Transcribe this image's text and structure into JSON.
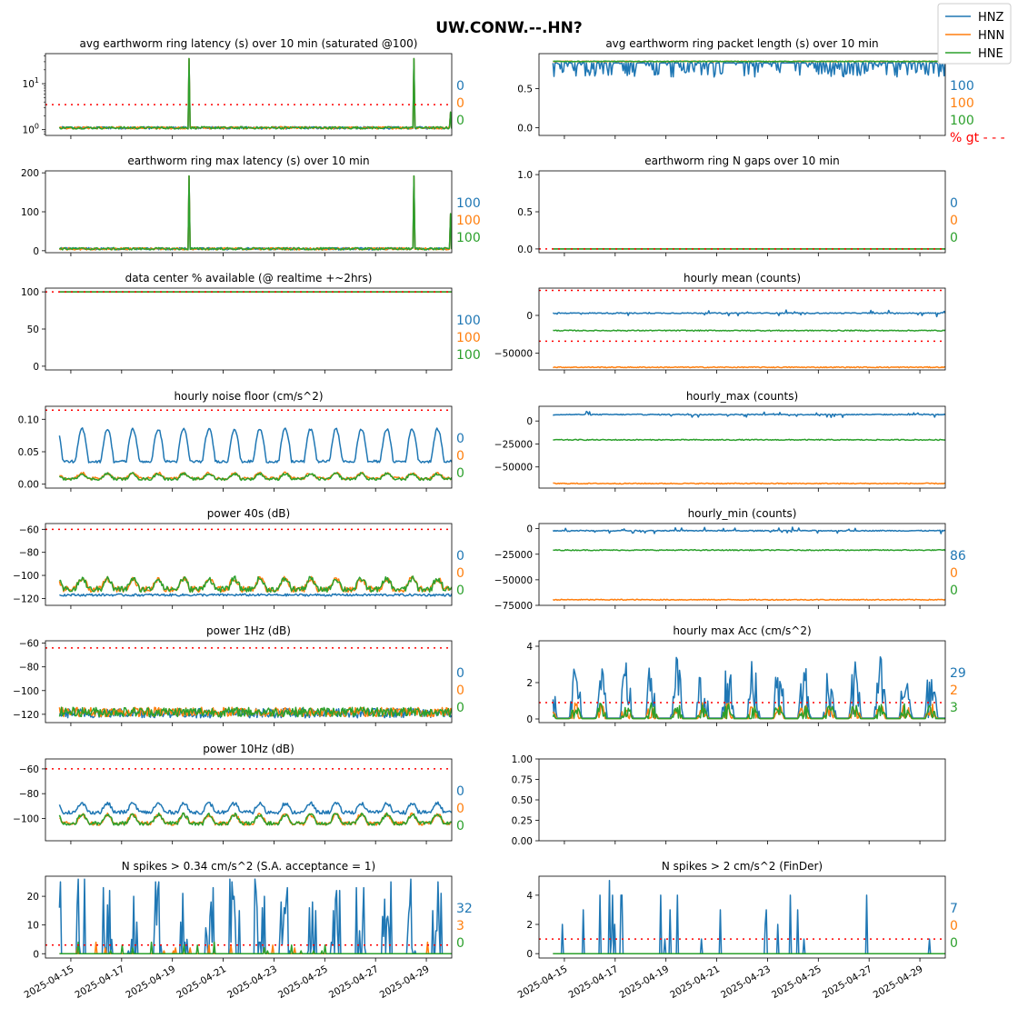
{
  "figure_title": "UW.CONW.--.HN?",
  "colors": {
    "HNZ": "#1f77b4",
    "HNN": "#ff7f0e",
    "HNE": "#2ca02c",
    "threshold": "#ff0000"
  },
  "legend": {
    "placement": "top-right",
    "items": [
      "HNZ",
      "HNN",
      "HNE"
    ]
  },
  "pct_gt_label": "% gt - - -",
  "x_axis": {
    "type": "date",
    "range": [
      "2025-04-14",
      "2025-04-30"
    ],
    "tick_labels": [
      "2025-04-15",
      "2025-04-17",
      "2025-04-19",
      "2025-04-21",
      "2025-04-23",
      "2025-04-25",
      "2025-04-27",
      "2025-04-29"
    ]
  },
  "chart_data": [
    {
      "type": "line",
      "title": "avg earthworm ring latency (s)   over 10 min (saturated @100)",
      "yscale": "log",
      "ylim": [
        0.75,
        45
      ],
      "yticks": [
        1,
        10
      ],
      "ytick_labels": [
        "10^0",
        "10^1"
      ],
      "threshold": 3.5,
      "pct_above": [
        "0",
        "0",
        "0"
      ],
      "series_levels": {
        "HNZ": 1.1,
        "HNN": 1.1,
        "HNE": 1.1
      },
      "spikes": [
        {
          "x": "2025-04-19 16:00",
          "y": 35
        },
        {
          "x": "2025-04-28 12:00",
          "y": 35
        },
        {
          "x": "2025-04-29 23:00",
          "y": 2.4
        }
      ]
    },
    {
      "type": "line",
      "title": "avg earthworm ring packet length (s)   over 10 min",
      "ylim": [
        -0.1,
        0.95
      ],
      "yticks": [
        0.0,
        0.5
      ],
      "ytick_labels": [
        "0.0",
        "0.5"
      ],
      "pct_above": [
        "100",
        "100",
        "100"
      ],
      "series_levels": {
        "HNZ": 0.83,
        "HNN": 0.85,
        "HNE": 0.85
      }
    },
    {
      "type": "line",
      "title": "earthworm ring max latency (s)   over 10 min",
      "ylim": [
        -5,
        205
      ],
      "yticks": [
        0,
        100,
        200
      ],
      "ytick_labels": [
        "0",
        "100",
        "200"
      ],
      "pct_above": [
        "100",
        "100",
        "100"
      ],
      "series_levels": {
        "HNZ": 5,
        "HNN": 5,
        "HNE": 5
      },
      "spikes": [
        {
          "x": "2025-04-19 16:00",
          "y": 192
        },
        {
          "x": "2025-04-28 12:00",
          "y": 192
        },
        {
          "x": "2025-04-29 23:00",
          "y": 95
        }
      ]
    },
    {
      "type": "line",
      "title": "earthworm ring N gaps   over 10 min",
      "ylim": [
        -0.05,
        1.05
      ],
      "yticks": [
        0.0,
        0.5,
        1.0
      ],
      "ytick_labels": [
        "0.0",
        "0.5",
        "1.0"
      ],
      "threshold": 0,
      "pct_above": [
        "0",
        "0",
        "0"
      ],
      "series_levels": {
        "HNZ": 0,
        "HNN": 0,
        "HNE": 0
      }
    },
    {
      "type": "line",
      "title": "data center % available (@ realtime +~2hrs)",
      "ylim": [
        -5,
        105
      ],
      "yticks": [
        0,
        50,
        100
      ],
      "ytick_labels": [
        "0",
        "50",
        "100"
      ],
      "threshold": 100,
      "pct_above": [
        "100",
        "100",
        "100"
      ],
      "series_levels": {
        "HNZ": 100,
        "HNN": 100,
        "HNE": 100
      }
    },
    {
      "type": "line",
      "title": "hourly mean (counts)",
      "ylim": [
        -72000,
        36000
      ],
      "yticks": [
        0,
        -50000
      ],
      "ytick_labels": [
        "0",
        "−50000"
      ],
      "thresholds": [
        33000,
        -34000
      ],
      "series_levels": {
        "HNZ": 3000,
        "HNN": -68500,
        "HNE": -20000
      }
    },
    {
      "type": "line",
      "title": "hourly noise floor (cm/s^2)",
      "ylim": [
        -0.006,
        0.12
      ],
      "yticks": [
        0.0,
        0.05,
        0.1
      ],
      "ytick_labels": [
        "0.00",
        "0.05",
        "0.10"
      ],
      "threshold": 0.114,
      "pct_above": [
        "0",
        "0",
        "0"
      ],
      "series_levels": {
        "HNZ": 0.055,
        "HNN": 0.012,
        "HNE": 0.011
      }
    },
    {
      "type": "line",
      "title": "hourly_max (counts)",
      "ylim": [
        -73000,
        16000
      ],
      "yticks": [
        0,
        -25000,
        -50000
      ],
      "ytick_labels": [
        "0",
        "−25000",
        "−50000"
      ],
      "series_levels": {
        "HNZ": 7000,
        "HNN": -68000,
        "HNE": -20500
      }
    },
    {
      "type": "line",
      "title": "power 40s (dB)",
      "ylim": [
        -126,
        -55
      ],
      "yticks": [
        -60,
        -80,
        -100,
        -120
      ],
      "ytick_labels": [
        "−60",
        "−80",
        "−100",
        "−120"
      ],
      "threshold": -60,
      "pct_above": [
        "0",
        "0",
        "0"
      ],
      "series_levels": {
        "HNZ": -117,
        "HNN": -112,
        "HNE": -112
      }
    },
    {
      "type": "line",
      "title": "hourly_min (counts)",
      "ylim": [
        -75000,
        5000
      ],
      "yticks": [
        0,
        -25000,
        -50000,
        -75000
      ],
      "ytick_labels": [
        "0",
        "−25000",
        "−50000",
        "−75000"
      ],
      "pct_above": [
        "86",
        "0",
        "0"
      ],
      "series_levels": {
        "HNZ": -2000,
        "HNN": -69500,
        "HNE": -21000
      }
    },
    {
      "type": "line",
      "title": "power 1Hz (dB)",
      "ylim": [
        -127,
        -58
      ],
      "yticks": [
        -60,
        -80,
        -100,
        -120
      ],
      "ytick_labels": [
        "−60",
        "−80",
        "−100",
        "−120"
      ],
      "threshold": -64,
      "pct_above": [
        "0",
        "0",
        "0"
      ],
      "series_levels": {
        "HNZ": -119,
        "HNN": -118,
        "HNE": -118
      }
    },
    {
      "type": "line",
      "title": "hourly max Acc (cm/s^2)",
      "ylim": [
        -0.2,
        4.3
      ],
      "yticks": [
        0,
        2,
        4
      ],
      "ytick_labels": [
        "0",
        "2",
        "4"
      ],
      "threshold": 0.9,
      "pct_above": [
        "29",
        "2",
        "3"
      ],
      "series_levels": {
        "HNZ": 1.2,
        "HNN": 0.3,
        "HNE": 0.25
      }
    },
    {
      "type": "line",
      "title": "power 10Hz (dB)",
      "ylim": [
        -118,
        -52
      ],
      "yticks": [
        -60,
        -80,
        -100
      ],
      "ytick_labels": [
        "−60",
        "−80",
        "−100"
      ],
      "threshold": -60,
      "pct_above": [
        "0",
        "0",
        "0"
      ],
      "series_levels": {
        "HNZ": -95,
        "HNN": -104,
        "HNE": -104
      }
    },
    {
      "type": "line",
      "title": "",
      "ylim": [
        0,
        1
      ],
      "yticks": [
        0.0,
        0.25,
        0.5,
        0.75,
        1.0
      ],
      "ytick_labels": [
        "0.00",
        "0.25",
        "0.50",
        "0.75",
        "1.00"
      ]
    },
    {
      "type": "line",
      "title": "N spikes > 0.34 cm/s^2 (S.A. acceptance = 1)",
      "ylim": [
        -1.5,
        27
      ],
      "yticks": [
        0,
        10,
        20
      ],
      "ytick_labels": [
        "0",
        "10",
        "20"
      ],
      "threshold": 3,
      "pct_above": [
        "32",
        "3",
        "0"
      ],
      "series_levels": {
        "HNZ": 6,
        "HNN": 0.3,
        "HNE": 0.1
      }
    },
    {
      "type": "line",
      "title": "N spikes > 2 cm/s^2 (FinDer)",
      "ylim": [
        -0.3,
        5.3
      ],
      "yticks": [
        0,
        2,
        4
      ],
      "ytick_labels": [
        "0",
        "2",
        "4"
      ],
      "threshold": 1,
      "pct_above": [
        "7",
        "0",
        "0"
      ],
      "series_levels": {
        "HNZ": 0.4,
        "HNN": 0.02,
        "HNE": 0.02
      }
    }
  ]
}
